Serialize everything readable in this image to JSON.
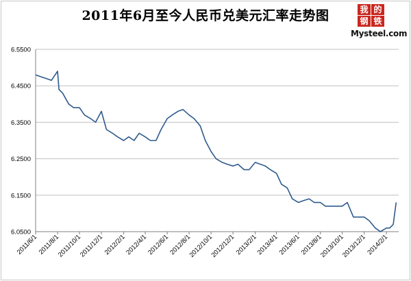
{
  "title": "2011年6月至今人民币兑美元汇率走势图",
  "logo": {
    "chars": [
      "我",
      "的",
      "钢",
      "铁"
    ],
    "text": "Mysteel.com",
    "color": "#c9271f"
  },
  "colors": {
    "line": "#2e5a8c",
    "grid": "#c0c0c0",
    "axis": "#7f7f7f"
  },
  "chart_data": {
    "type": "line",
    "title": "2011年6月至今人民币兑美元汇率走势图",
    "xlabel": "",
    "ylabel": "",
    "ylim": [
      6.05,
      6.55
    ],
    "y_ticks": [
      6.55,
      6.45,
      6.35,
      6.25,
      6.15,
      6.05
    ],
    "y_tick_labels": [
      "6.5500",
      "6.4500",
      "6.3500",
      "6.2500",
      "6.1500",
      "6.0500"
    ],
    "x_tick_labels": [
      "2011/6/1",
      "2011/8/1",
      "2011/10/1",
      "2011/12/1",
      "2012/2/1",
      "2012/4/1",
      "2012/6/1",
      "2012/8/1",
      "2012/10/1",
      "2012/12/1",
      "2013/2/1",
      "2013/4/1",
      "2013/6/1",
      "2013/8/1",
      "2013/10/1",
      "2013/12/1",
      "2014/2/1"
    ],
    "grid": "horizontal",
    "legend": "none",
    "x": [
      "2011/6/1",
      "2011/6/15",
      "2011/7/1",
      "2011/7/15",
      "2011/8/1",
      "2011/8/5",
      "2011/8/15",
      "2011/9/1",
      "2011/9/15",
      "2011/10/1",
      "2011/10/15",
      "2011/11/1",
      "2011/11/15",
      "2011/12/1",
      "2011/12/15",
      "2012/1/1",
      "2012/1/15",
      "2012/2/1",
      "2012/2/15",
      "2012/3/1",
      "2012/3/15",
      "2012/4/1",
      "2012/4/15",
      "2012/5/1",
      "2012/5/15",
      "2012/6/1",
      "2012/6/15",
      "2012/7/1",
      "2012/7/15",
      "2012/8/1",
      "2012/8/15",
      "2012/9/1",
      "2012/9/15",
      "2012/10/1",
      "2012/10/15",
      "2012/11/1",
      "2012/11/15",
      "2012/12/1",
      "2012/12/15",
      "2013/1/1",
      "2013/1/15",
      "2013/2/1",
      "2013/2/15",
      "2013/3/1",
      "2013/3/15",
      "2013/4/1",
      "2013/4/15",
      "2013/5/1",
      "2013/5/15",
      "2013/6/1",
      "2013/6/15",
      "2013/7/1",
      "2013/7/15",
      "2013/8/1",
      "2013/8/15",
      "2013/9/1",
      "2013/9/15",
      "2013/10/1",
      "2013/10/15",
      "2013/11/1",
      "2013/11/15",
      "2013/12/1",
      "2013/12/15",
      "2014/1/1",
      "2014/1/15",
      "2014/2/1",
      "2014/2/10",
      "2014/2/20",
      "2014/2/28"
    ],
    "values": [
      6.48,
      6.475,
      6.47,
      6.465,
      6.49,
      6.44,
      6.43,
      6.4,
      6.39,
      6.39,
      6.37,
      6.36,
      6.35,
      6.38,
      6.33,
      6.32,
      6.31,
      6.3,
      6.31,
      6.3,
      6.32,
      6.31,
      6.3,
      6.3,
      6.33,
      6.36,
      6.37,
      6.38,
      6.385,
      6.37,
      6.36,
      6.34,
      6.3,
      6.27,
      6.25,
      6.24,
      6.235,
      6.23,
      6.235,
      6.22,
      6.22,
      6.24,
      6.235,
      6.23,
      6.22,
      6.21,
      6.18,
      6.17,
      6.14,
      6.13,
      6.135,
      6.14,
      6.13,
      6.13,
      6.12,
      6.12,
      6.12,
      6.12,
      6.13,
      6.09,
      6.09,
      6.09,
      6.08,
      6.06,
      6.05,
      6.06,
      6.06,
      6.07,
      6.13
    ]
  }
}
